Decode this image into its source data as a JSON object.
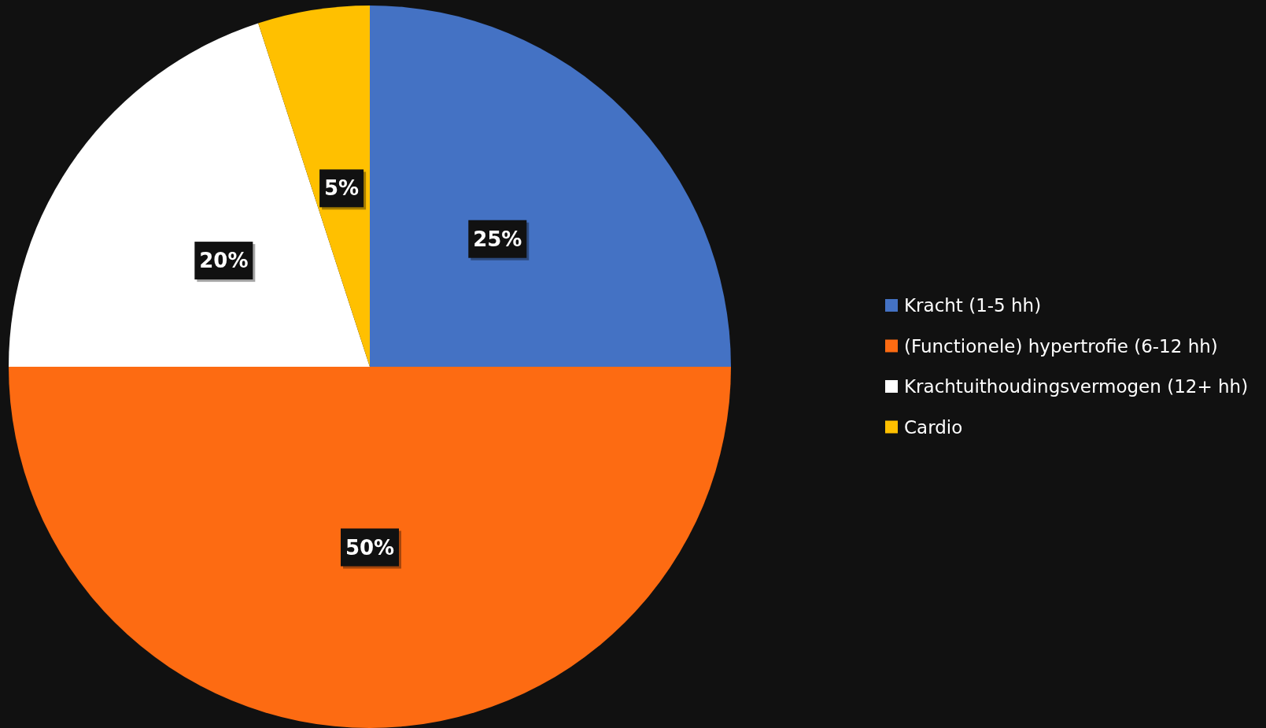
{
  "chart_data": {
    "type": "pie",
    "categories": [
      "Kracht (1-5 hh)",
      "(Functionele) hypertrofie (6-12 hh)",
      "Krachtuithoudingsvermogen (12+ hh)",
      "Cardio"
    ],
    "values": [
      25,
      50,
      20,
      5
    ],
    "colors": [
      "#4472c4",
      "#fd6b12",
      "#ffffff",
      "#ffc000"
    ],
    "value_labels": [
      "25%",
      "50%",
      "20%",
      "5%"
    ],
    "legend": "right"
  }
}
